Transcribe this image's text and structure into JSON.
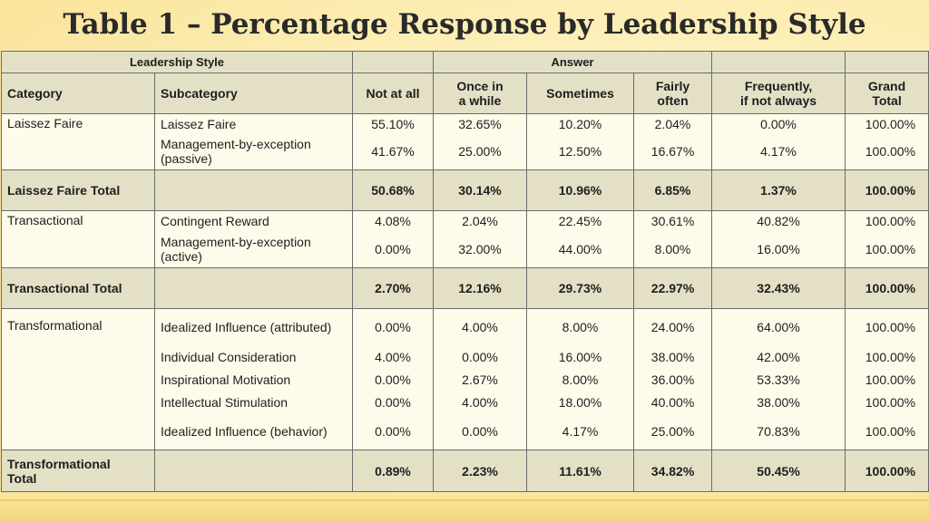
{
  "title": "Table 1 – Percentage Response by Leadership Style",
  "header": {
    "group_left": "Leadership Style",
    "group_right": "Answer",
    "columns": {
      "category": "Category",
      "subcategory": "Subcategory",
      "not_at_all": "Not at all",
      "once_line1": "Once in",
      "once_line2": "a while",
      "sometimes": "Sometimes",
      "fairly_line1": "Fairly",
      "fairly_line2": "often",
      "freq_line1": "Frequently,",
      "freq_line2": "if not always",
      "grand_line1": "Grand",
      "grand_line2": "Total"
    }
  },
  "rows": {
    "lf1": {
      "category": "Laissez Faire",
      "subcategory": "Laissez Faire",
      "v": [
        "55.10%",
        "32.65%",
        "10.20%",
        "2.04%",
        "0.00%",
        "100.00%"
      ]
    },
    "lf2": {
      "subcategory_line1": "Management-by-exception",
      "subcategory_line2": "(passive)",
      "v": [
        "41.67%",
        "25.00%",
        "12.50%",
        "16.67%",
        "4.17%",
        "100.00%"
      ]
    },
    "lf_total": {
      "label": "Laissez Faire Total",
      "v": [
        "50.68%",
        "30.14%",
        "10.96%",
        "6.85%",
        "1.37%",
        "100.00%"
      ]
    },
    "tr1": {
      "category": "Transactional",
      "subcategory": "Contingent Reward",
      "v": [
        "4.08%",
        "2.04%",
        "22.45%",
        "30.61%",
        "40.82%",
        "100.00%"
      ]
    },
    "tr2": {
      "subcategory_line1": "Management-by-exception",
      "subcategory_line2": "(active)",
      "v": [
        "0.00%",
        "32.00%",
        "44.00%",
        "8.00%",
        "16.00%",
        "100.00%"
      ]
    },
    "tr_total": {
      "label": "Transactional Total",
      "v": [
        "2.70%",
        "12.16%",
        "29.73%",
        "22.97%",
        "32.43%",
        "100.00%"
      ]
    },
    "tf1": {
      "category": "Transformational",
      "subcategory": "Idealized Influence (attributed)",
      "v": [
        "0.00%",
        "4.00%",
        "8.00%",
        "24.00%",
        "64.00%",
        "100.00%"
      ]
    },
    "tf2": {
      "subcategory": "Individual Consideration",
      "v": [
        "4.00%",
        "0.00%",
        "16.00%",
        "38.00%",
        "42.00%",
        "100.00%"
      ]
    },
    "tf3": {
      "subcategory": "Inspirational Motivation",
      "v": [
        "0.00%",
        "2.67%",
        "8.00%",
        "36.00%",
        "53.33%",
        "100.00%"
      ]
    },
    "tf4": {
      "subcategory": "Intellectual Stimulation",
      "v": [
        "0.00%",
        "4.00%",
        "18.00%",
        "40.00%",
        "38.00%",
        "100.00%"
      ]
    },
    "tf5": {
      "subcategory": "Idealized Influence (behavior)",
      "v": [
        "0.00%",
        "0.00%",
        "4.17%",
        "25.00%",
        "70.83%",
        "100.00%"
      ]
    },
    "tf_total": {
      "label_line1": "Transformational",
      "label_line2": "Total",
      "v": [
        "0.89%",
        "2.23%",
        "11.61%",
        "34.82%",
        "50.45%",
        "100.00%"
      ]
    }
  }
}
